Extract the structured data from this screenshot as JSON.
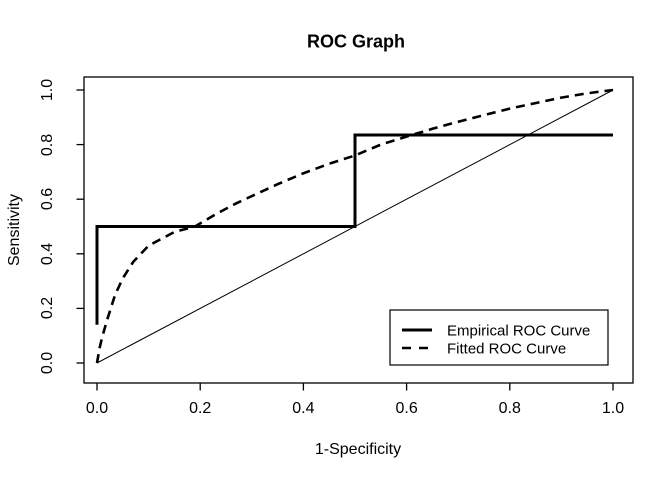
{
  "window": {
    "background": "#ffffff"
  },
  "chart_data": {
    "type": "line",
    "title": "ROC Graph",
    "xlabel": "1-Specificity",
    "ylabel": "Sensitivity",
    "xlim": [
      0,
      1
    ],
    "ylim": [
      0,
      1
    ],
    "grid": false,
    "x_ticks": {
      "values": [
        0,
        0.2,
        0.4,
        0.6,
        0.8,
        1.0
      ],
      "labels": [
        "0.0",
        "0.2",
        "0.4",
        "0.6",
        "0.8",
        "1.0"
      ]
    },
    "y_ticks": {
      "values": [
        0,
        0.2,
        0.4,
        0.6,
        0.8,
        1.0
      ],
      "labels": [
        "0.0",
        "0.2",
        "0.4",
        "0.6",
        "0.8",
        "1.0"
      ]
    },
    "series": [
      {
        "name": "Empirical ROC Curve",
        "style": "solid",
        "width": 3,
        "points": [
          [
            0,
            0.14
          ],
          [
            0,
            0.5
          ],
          [
            0.5,
            0.5
          ],
          [
            0.5,
            0.835
          ],
          [
            1.0,
            0.835
          ]
        ]
      },
      {
        "name": "Fitted ROC Curve",
        "style": "dashed",
        "width": 2.6,
        "points": [
          [
            0,
            0
          ],
          [
            0.005,
            0.055
          ],
          [
            0.01,
            0.095
          ],
          [
            0.02,
            0.16
          ],
          [
            0.035,
            0.25
          ],
          [
            0.05,
            0.31
          ],
          [
            0.07,
            0.37
          ],
          [
            0.1,
            0.43
          ],
          [
            0.15,
            0.48
          ],
          [
            0.19,
            0.5
          ],
          [
            0.23,
            0.545
          ],
          [
            0.27,
            0.585
          ],
          [
            0.31,
            0.62
          ],
          [
            0.35,
            0.655
          ],
          [
            0.4,
            0.695
          ],
          [
            0.45,
            0.73
          ],
          [
            0.5,
            0.76
          ],
          [
            0.55,
            0.8
          ],
          [
            0.61,
            0.835
          ],
          [
            0.65,
            0.858
          ],
          [
            0.7,
            0.884
          ],
          [
            0.75,
            0.908
          ],
          [
            0.8,
            0.932
          ],
          [
            0.85,
            0.952
          ],
          [
            0.9,
            0.972
          ],
          [
            0.95,
            0.988
          ],
          [
            1.0,
            1.0
          ]
        ]
      },
      {
        "name": "Chance Diagonal",
        "style": "solid",
        "width": 1,
        "points": [
          [
            0,
            0
          ],
          [
            1,
            1
          ]
        ]
      }
    ],
    "legend": {
      "position": "bottom-right",
      "entries": [
        {
          "label": "Empirical ROC Curve",
          "line_style": "solid"
        },
        {
          "label": "Fitted ROC Curve",
          "line_style": "dashed"
        }
      ]
    },
    "colors": {
      "foreground": "#000000",
      "background": "#ffffff"
    }
  }
}
